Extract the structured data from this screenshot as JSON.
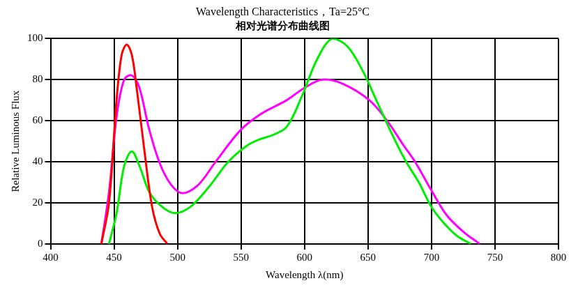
{
  "chart_data": {
    "type": "line",
    "title": "Wavelength Characteristics，Ta=25°C",
    "subtitle": "相对光谱分布曲线图",
    "x_label": "Wavelength λ(nm)",
    "y_label": "Relative Luminous Flux",
    "xlim": [
      400,
      800
    ],
    "xticks": [
      400,
      450,
      500,
      550,
      600,
      650,
      700,
      750,
      800
    ],
    "ylim": [
      0,
      100
    ],
    "yticks": [
      0,
      20,
      40,
      60,
      80,
      100
    ],
    "grid": true,
    "series": [
      {
        "color": "#ff0000",
        "x": [
          440,
          446,
          452,
          456,
          460,
          464,
          468,
          474,
          480,
          486,
          492
        ],
        "values": [
          0,
          20,
          70,
          92,
          97,
          92,
          75,
          45,
          18,
          5,
          0
        ]
      },
      {
        "color": "#00ee00",
        "x": [
          446,
          452,
          458,
          464,
          470,
          478,
          488,
          498,
          510,
          525,
          540,
          555,
          565,
          575,
          586,
          598,
          610,
          622,
          634,
          646,
          658,
          670,
          680,
          690,
          700,
          710,
          720,
          731
        ],
        "values": [
          0,
          15,
          38,
          45,
          38,
          25,
          18,
          15,
          18,
          28,
          40,
          48,
          51,
          53,
          57,
          72,
          90,
          100,
          96,
          84,
          68,
          52,
          40,
          30,
          18,
          10,
          4,
          0
        ]
      },
      {
        "color": "#ff00ff",
        "x": [
          440,
          446,
          452,
          458,
          464,
          470,
          478,
          489,
          502,
          515,
          530,
          549,
          565,
          586,
          600,
          614,
          630,
          651,
          665,
          678,
          687,
          700,
          712,
          725,
          738
        ],
        "values": [
          0,
          25,
          62,
          80,
          82,
          76,
          55,
          35,
          25,
          28,
          40,
          55,
          63,
          70,
          76,
          80,
          78,
          70,
          60,
          48,
          40,
          26,
          14,
          6,
          0
        ]
      }
    ]
  }
}
